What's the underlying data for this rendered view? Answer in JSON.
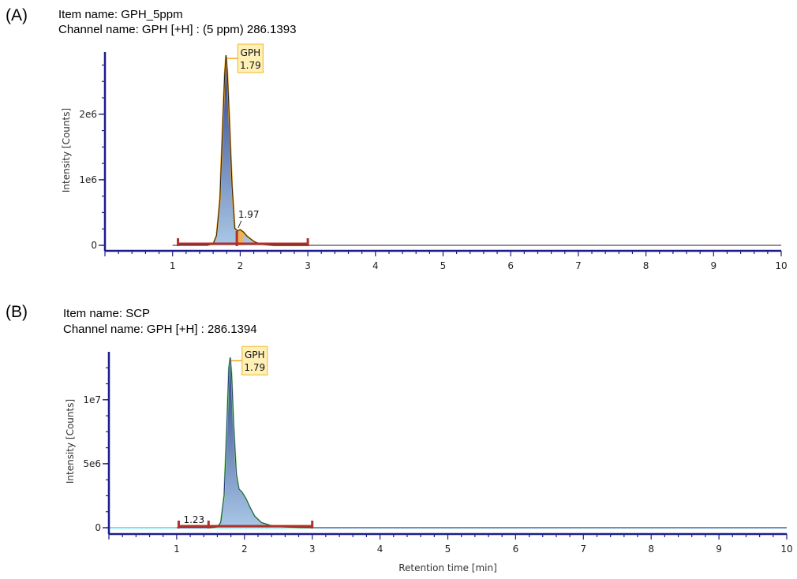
{
  "chart_data": [
    {
      "type": "area",
      "panel_label": "(A)",
      "item_line": "Item name: GPH_5ppm",
      "channel_line": "Channel name: GPH [+H] : (5 ppm) 286.1393",
      "xlabel": "",
      "ylabel": "Intensity [Counts]",
      "xlim": [
        0,
        10
      ],
      "ylim": [
        0,
        2900000.0
      ],
      "x_ticks": [
        1,
        2,
        3,
        4,
        5,
        6,
        7,
        8,
        9,
        10
      ],
      "y_ticks": [
        {
          "value": 0,
          "label": "0"
        },
        {
          "value": 1000000,
          "label": "1e6"
        },
        {
          "value": 2000000,
          "label": "2e6"
        }
      ],
      "series": [
        {
          "x": [
            1.0,
            1.5,
            1.6,
            1.65,
            1.7,
            1.74,
            1.77,
            1.79,
            1.81,
            1.84,
            1.88,
            1.92,
            1.96,
            2.0,
            2.05,
            2.1,
            2.2,
            2.3,
            2.5,
            3.0,
            10.0
          ],
          "y": [
            0,
            0,
            20000,
            150000,
            700000,
            1800000,
            2600000,
            2900000,
            2650000,
            1900000,
            900000,
            260000,
            220000,
            240000,
            200000,
            140000,
            60000,
            15000,
            0,
            0,
            0
          ]
        }
      ],
      "peak_label": {
        "name": "GPH",
        "rt": "1.79",
        "x": 1.79,
        "y": 2900000
      },
      "secondary_label": {
        "rt": "1.97",
        "x": 1.97,
        "y": 230000
      },
      "integration_range": [
        1.08,
        3.0
      ],
      "split_marker": 1.95
    },
    {
      "type": "area",
      "panel_label": "(B)",
      "item_line": "Item name: SCP",
      "channel_line": "Channel name: GPH [+H] : 286.1394",
      "xlabel": "Retention time [min]",
      "ylabel": "Intensity [Counts]",
      "xlim": [
        0,
        10
      ],
      "ylim": [
        0,
        13500000.0
      ],
      "x_ticks": [
        1,
        2,
        3,
        4,
        5,
        6,
        7,
        8,
        9,
        10
      ],
      "y_ticks": [
        {
          "value": 0,
          "label": "0"
        },
        {
          "value": 5000000,
          "label": "5e6"
        },
        {
          "value": 10000000,
          "label": "1e7"
        }
      ],
      "series": [
        {
          "x": [
            1.0,
            1.5,
            1.6,
            1.65,
            1.7,
            1.74,
            1.77,
            1.79,
            1.81,
            1.84,
            1.88,
            1.92,
            1.96,
            2.02,
            2.08,
            2.15,
            2.25,
            2.4,
            2.6,
            2.8,
            3.0,
            10.0
          ],
          "y": [
            0,
            0,
            50000,
            400000,
            2500000,
            8000000,
            12500000,
            13300000,
            12000000,
            8000000,
            4200000,
            3000000,
            2800000,
            2300000,
            1600000,
            900000,
            400000,
            150000,
            50000,
            10000,
            0,
            0
          ]
        }
      ],
      "peak_label": {
        "name": "GPH",
        "rt": "1.79",
        "x": 1.79,
        "y": 13300000
      },
      "secondary_label": {
        "rt": "1.23",
        "x": 1.23,
        "y": 0
      },
      "integration_range": [
        1.03,
        3.0
      ],
      "split_marker": 1.47
    }
  ],
  "colors": {
    "axis": "#1c1c8c",
    "bracket": "#b0302a",
    "peak_top": "#2b3f8a",
    "peak_bottom": "#a9c7e6",
    "outline_a": "#f2a51a",
    "outline_b": "#8fe07a",
    "label_fill": "#fff0b8",
    "label_border": "#f2c040",
    "baseline_b": "#40e0e8"
  }
}
